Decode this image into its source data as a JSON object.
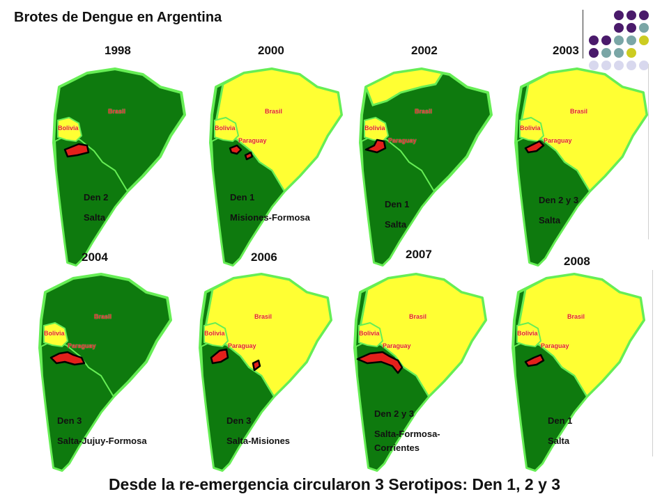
{
  "title": "Brotes de Dengue en Argentina",
  "footer": "Desde la re-emergencia circularon 3 Serotipos: Den 1, 2 y 3",
  "colors": {
    "dark_green": "#1f8a1f",
    "land_green": "#0e7a0e",
    "yellow": "#ffff33",
    "outbreak_red": "#e3201b",
    "border_light": "#66ee55"
  },
  "map_labels": {
    "brasil": "Brasil",
    "bolivia": "Bolivia",
    "paraguay": "Paraguay"
  },
  "panels": [
    {
      "year": "1998",
      "serotype": "Den 2",
      "region": "Salta"
    },
    {
      "year": "2000",
      "serotype": "Den 1",
      "region": "Misiones-Formosa"
    },
    {
      "year": "2002",
      "serotype": "Den 1",
      "region": "Salta"
    },
    {
      "year": "2003",
      "serotype": "Den 2 y 3",
      "region": "Salta"
    },
    {
      "year": "2004",
      "serotype": "Den 3",
      "region": "Salta-Jujuy-Formosa"
    },
    {
      "year": "2006",
      "serotype": "Den 3",
      "region": "Salta-Misiones"
    },
    {
      "year": "2007",
      "serotype": "Den 2 y 3",
      "region": "Salta-Formosa-",
      "region_line2": "Corrientes"
    },
    {
      "year": "2008",
      "serotype": "Den 1",
      "region": "Salta"
    }
  ]
}
